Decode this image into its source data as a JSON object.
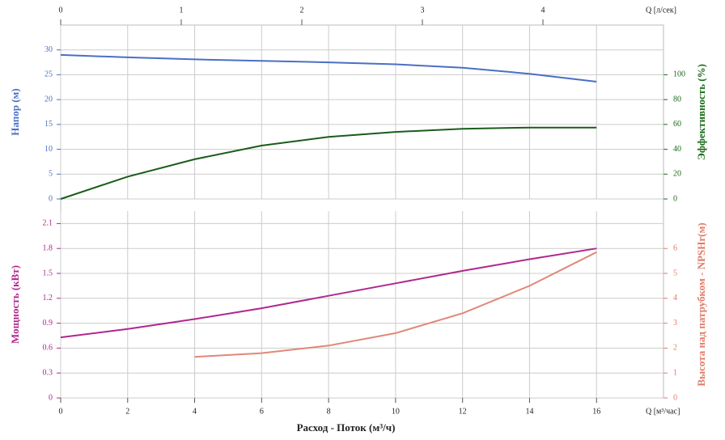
{
  "chart_data": [
    {
      "type": "line",
      "x": [
        0,
        2,
        4,
        6,
        8,
        10,
        12,
        14,
        16
      ],
      "xlim": [
        0,
        18
      ],
      "x2label": "Q [л/сек]",
      "x2lim": [
        0,
        5
      ],
      "x2ticks": [
        0,
        1,
        2,
        3,
        4
      ],
      "ylabel": "Напор (м)",
      "ylim": [
        0,
        35
      ],
      "yticks": [
        0,
        5,
        10,
        15,
        20,
        25,
        30
      ],
      "ycolor": "#4a6fc4",
      "y2label": "Эффективность (%)",
      "y2lim": [
        0,
        140
      ],
      "y2ticks": [
        0,
        20,
        40,
        60,
        80,
        100
      ],
      "y2color": "#1a6b1a",
      "grid": true,
      "series": [
        {
          "name": "Напор (м)",
          "color": "#4a6fc4",
          "values": [
            29,
            28.5,
            28.1,
            27.8,
            27.5,
            27.1,
            26.4,
            25.2,
            23.6
          ]
        },
        {
          "name": "Эффективность (%)",
          "color": "#1a5c1a",
          "axis": "y2",
          "values": [
            0,
            18,
            32,
            43,
            50,
            54,
            56.5,
            57.5,
            57.5
          ]
        }
      ]
    },
    {
      "type": "line",
      "x": [
        0,
        2,
        4,
        6,
        8,
        10,
        12,
        14,
        16
      ],
      "xlim": [
        0,
        18
      ],
      "xticks": [
        0,
        2,
        4,
        6,
        8,
        10,
        12,
        14,
        16
      ],
      "xunit": "Q [м³/час]",
      "xlabel": "Расход - Поток (м³/ч)",
      "ylabel": "Мощность (кВт)",
      "ylim": [
        0,
        2.25
      ],
      "yticks": [
        0,
        0.3,
        0.6,
        0.9,
        1.2,
        1.5,
        1.8,
        2.1
      ],
      "ycolor": "#b0278f",
      "y2label": "Высота над патрубком - NPSHr(м)",
      "y2lim": [
        0,
        7.5
      ],
      "y2ticks": [
        0,
        1,
        2,
        3,
        4,
        5,
        6
      ],
      "y2color": "#e07a68",
      "grid": true,
      "series": [
        {
          "name": "Мощность (кВт)",
          "color": "#b0278f",
          "values": [
            0.73,
            0.83,
            0.95,
            1.08,
            1.23,
            1.38,
            1.53,
            1.67,
            1.8
          ]
        },
        {
          "name": "NPSHr(м)",
          "color": "#e08878",
          "axis": "y2",
          "values": [
            null,
            null,
            1.65,
            1.8,
            2.1,
            2.6,
            3.4,
            4.5,
            5.85
          ]
        }
      ]
    }
  ]
}
